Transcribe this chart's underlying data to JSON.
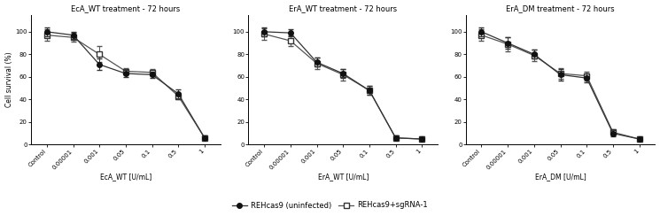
{
  "panels": [
    {
      "title": "EcA_WT treatment - 72 hours",
      "xlabel": "EcA_WT [U/mL]",
      "xtick_labels": [
        "Control",
        "0.00001",
        "0.001",
        "0.05",
        "0.1",
        "0.5",
        "1"
      ],
      "line1_y": [
        100,
        97,
        71,
        63,
        62,
        45,
        6
      ],
      "line1_yerr": [
        4,
        3,
        5,
        3,
        3,
        4,
        2
      ],
      "line2_y": [
        97,
        95,
        80,
        65,
        64,
        43,
        6
      ],
      "line2_yerr": [
        5,
        4,
        7,
        3,
        3,
        3,
        2
      ]
    },
    {
      "title": "ErA_WT treatment - 72 hours",
      "xlabel": "ErA_WT [U/mL]",
      "xtick_labels": [
        "Control",
        "0.00001",
        "0.001",
        "0.05",
        "0.1",
        "0.5",
        "1"
      ],
      "line1_y": [
        100,
        99,
        73,
        63,
        48,
        6,
        5
      ],
      "line1_yerr": [
        4,
        3,
        4,
        4,
        4,
        2,
        1
      ],
      "line2_y": [
        98,
        92,
        72,
        62,
        48,
        6,
        5
      ],
      "line2_yerr": [
        5,
        5,
        5,
        5,
        4,
        2,
        2
      ]
    },
    {
      "title": "ErA_DM treatment - 72 hours",
      "xlabel": "ErA_DM [U/mL]",
      "xtick_labels": [
        "Control",
        "0.00001",
        "0.001",
        "0.05",
        "0.1",
        "0.5",
        "1"
      ],
      "line1_y": [
        100,
        90,
        80,
        62,
        59,
        10,
        5
      ],
      "line1_yerr": [
        4,
        5,
        4,
        5,
        4,
        3,
        1
      ],
      "line2_y": [
        97,
        89,
        79,
        63,
        61,
        11,
        5
      ],
      "line2_yerr": [
        5,
        6,
        5,
        5,
        4,
        3,
        2
      ]
    }
  ],
  "legend_labels": [
    "REHcas9 (uninfected)",
    "REHcas9+sgRNA-1"
  ],
  "ylabel": "Cell survival (%)",
  "line1_color": "#333333",
  "line2_color": "#555555",
  "ylim": [
    0,
    115
  ],
  "yticks": [
    0,
    20,
    40,
    60,
    80,
    100
  ]
}
